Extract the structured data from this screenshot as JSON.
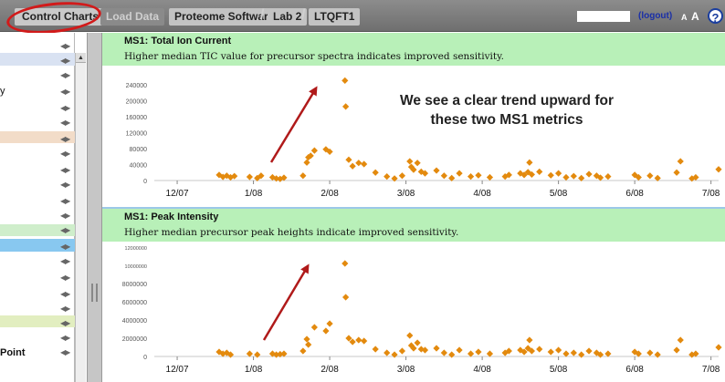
{
  "topbar": {
    "control_charts": "Control Charts",
    "load_data": "Load Data",
    "breadcrumbs": [
      "Proteome Software",
      "Lab 2",
      "LTQFT1"
    ],
    "logout": "(logout)",
    "font_small": "A",
    "font_large": "A",
    "help": "?"
  },
  "sidebar": {
    "fragment_1": "y",
    "fragment_2": "Point"
  },
  "annotation": {
    "line1": "We see a clear trend upward for",
    "line2": "these two MS1 metrics"
  },
  "chart_data": [
    {
      "type": "scatter",
      "title": "MS1: Total Ion Current",
      "subtitle": "Higher median TIC value for precursor spectra indicates improved sensitivity.",
      "x_ticks": [
        "12/07",
        "1/08",
        "2/08",
        "3/08",
        "4/08",
        "5/08",
        "6/08",
        "7/08"
      ],
      "y_ticks": [
        "0",
        "40000",
        "80000",
        "120000",
        "160000",
        "200000",
        "240000"
      ],
      "ylim": [
        0,
        260000
      ],
      "xlim": [
        -0.3,
        7.1
      ],
      "marker_color": "#e38a0e",
      "points": [
        [
          0.55,
          14000
        ],
        [
          0.6,
          9000
        ],
        [
          0.65,
          12000
        ],
        [
          0.7,
          8000
        ],
        [
          0.75,
          11000
        ],
        [
          0.95,
          9000
        ],
        [
          1.05,
          6000
        ],
        [
          1.1,
          12000
        ],
        [
          1.25,
          8000
        ],
        [
          1.3,
          5000
        ],
        [
          1.35,
          4000
        ],
        [
          1.4,
          7000
        ],
        [
          1.65,
          12000
        ],
        [
          1.7,
          45000
        ],
        [
          1.72,
          58000
        ],
        [
          1.75,
          62000
        ],
        [
          1.8,
          75000
        ],
        [
          1.95,
          78000
        ],
        [
          2.0,
          72000
        ],
        [
          2.2,
          250000
        ],
        [
          2.21,
          185000
        ],
        [
          2.25,
          52000
        ],
        [
          2.3,
          36000
        ],
        [
          2.38,
          44000
        ],
        [
          2.45,
          41000
        ],
        [
          2.6,
          20000
        ],
        [
          2.75,
          10000
        ],
        [
          2.85,
          5000
        ],
        [
          2.95,
          12000
        ],
        [
          3.05,
          48000
        ],
        [
          3.07,
          34000
        ],
        [
          3.1,
          27000
        ],
        [
          3.15,
          44000
        ],
        [
          3.2,
          22000
        ],
        [
          3.25,
          18000
        ],
        [
          3.4,
          25000
        ],
        [
          3.5,
          12000
        ],
        [
          3.6,
          6000
        ],
        [
          3.7,
          18000
        ],
        [
          3.85,
          10000
        ],
        [
          3.95,
          13000
        ],
        [
          4.1,
          8000
        ],
        [
          4.3,
          10000
        ],
        [
          4.35,
          14000
        ],
        [
          4.5,
          18000
        ],
        [
          4.55,
          14000
        ],
        [
          4.6,
          21000
        ],
        [
          4.62,
          45000
        ],
        [
          4.65,
          15000
        ],
        [
          4.75,
          22000
        ],
        [
          4.9,
          13000
        ],
        [
          5.0,
          18000
        ],
        [
          5.1,
          8000
        ],
        [
          5.2,
          11000
        ],
        [
          5.3,
          6000
        ],
        [
          5.4,
          16000
        ],
        [
          5.5,
          12000
        ],
        [
          5.55,
          7000
        ],
        [
          5.65,
          10000
        ],
        [
          6.0,
          14000
        ],
        [
          6.05,
          8000
        ],
        [
          6.2,
          12000
        ],
        [
          6.3,
          6000
        ],
        [
          6.55,
          20000
        ],
        [
          6.6,
          48000
        ],
        [
          6.75,
          5000
        ],
        [
          6.8,
          8000
        ],
        [
          7.1,
          28000
        ]
      ]
    },
    {
      "type": "scatter",
      "title": "MS1: Peak Intensity",
      "subtitle": "Higher median precursor peak heights indicate improved sensitivity.",
      "x_ticks": [
        "12/07",
        "1/08",
        "2/08",
        "3/08",
        "4/08",
        "5/08",
        "6/08",
        "7/08"
      ],
      "y_ticks": [
        "0",
        "2000000",
        "4000000",
        "6000000",
        "8000000",
        "10000000",
        "12000000"
      ],
      "ylim": [
        0,
        12000000
      ],
      "xlim": [
        -0.3,
        7.1
      ],
      "marker_color": "#e38a0e",
      "points": [
        [
          0.55,
          500000
        ],
        [
          0.6,
          300000
        ],
        [
          0.65,
          400000
        ],
        [
          0.7,
          200000
        ],
        [
          0.95,
          300000
        ],
        [
          1.05,
          200000
        ],
        [
          1.25,
          300000
        ],
        [
          1.3,
          200000
        ],
        [
          1.35,
          250000
        ],
        [
          1.4,
          300000
        ],
        [
          1.65,
          600000
        ],
        [
          1.7,
          1900000
        ],
        [
          1.72,
          1300000
        ],
        [
          1.8,
          3200000
        ],
        [
          1.95,
          2800000
        ],
        [
          2.0,
          3600000
        ],
        [
          2.2,
          10200000
        ],
        [
          2.21,
          6500000
        ],
        [
          2.25,
          2000000
        ],
        [
          2.3,
          1600000
        ],
        [
          2.38,
          1800000
        ],
        [
          2.45,
          1700000
        ],
        [
          2.6,
          800000
        ],
        [
          2.75,
          400000
        ],
        [
          2.85,
          200000
        ],
        [
          2.95,
          600000
        ],
        [
          3.05,
          2300000
        ],
        [
          3.07,
          1200000
        ],
        [
          3.1,
          900000
        ],
        [
          3.15,
          1500000
        ],
        [
          3.2,
          800000
        ],
        [
          3.25,
          700000
        ],
        [
          3.4,
          900000
        ],
        [
          3.5,
          400000
        ],
        [
          3.6,
          200000
        ],
        [
          3.7,
          700000
        ],
        [
          3.85,
          300000
        ],
        [
          3.95,
          500000
        ],
        [
          4.1,
          300000
        ],
        [
          4.3,
          400000
        ],
        [
          4.35,
          600000
        ],
        [
          4.5,
          700000
        ],
        [
          4.55,
          500000
        ],
        [
          4.6,
          900000
        ],
        [
          4.62,
          1800000
        ],
        [
          4.65,
          600000
        ],
        [
          4.75,
          800000
        ],
        [
          4.9,
          500000
        ],
        [
          5.0,
          700000
        ],
        [
          5.1,
          300000
        ],
        [
          5.2,
          400000
        ],
        [
          5.3,
          200000
        ],
        [
          5.4,
          600000
        ],
        [
          5.5,
          400000
        ],
        [
          5.55,
          200000
        ],
        [
          5.65,
          300000
        ],
        [
          6.0,
          500000
        ],
        [
          6.05,
          300000
        ],
        [
          6.2,
          400000
        ],
        [
          6.3,
          200000
        ],
        [
          6.55,
          700000
        ],
        [
          6.6,
          1800000
        ],
        [
          6.75,
          200000
        ],
        [
          6.8,
          300000
        ],
        [
          7.1,
          1000000
        ]
      ]
    }
  ],
  "colors": {
    "header_bar": "#7a7a7a",
    "panel_header": "#b8f0b8",
    "marker": "#e38a0e",
    "annotation_arrow": "#b01a1a",
    "callout_oval": "#d21a1a"
  }
}
